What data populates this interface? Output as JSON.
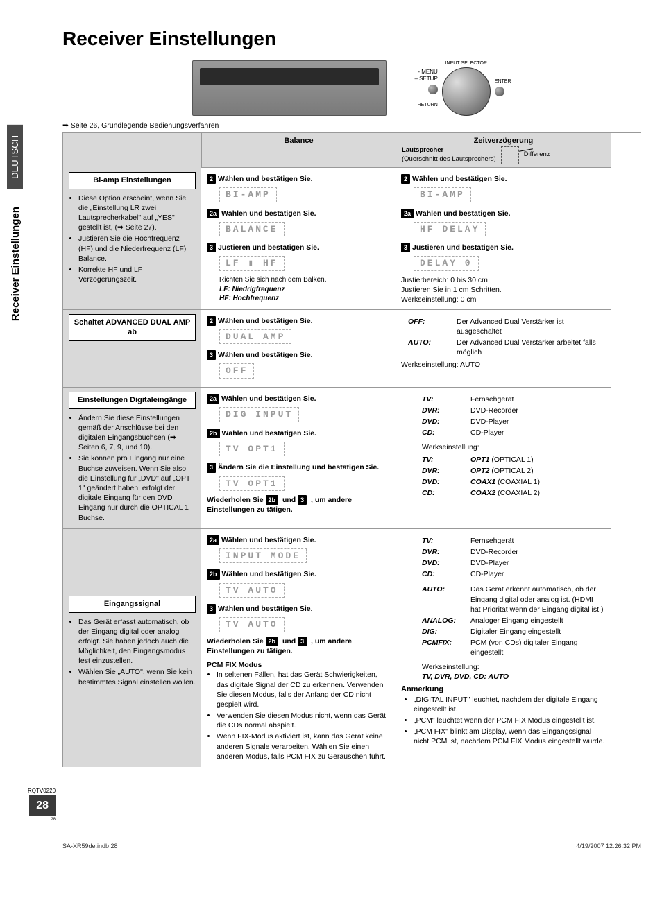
{
  "page": {
    "title": "Receiver Einstellungen",
    "ref": "➡ Seite 26, Grundlegende Bedienungsverfahren",
    "side_tab_lang": "DEUTSCH",
    "side_tab_section": "Receiver Einstellungen",
    "page_number": "28",
    "footer_code": "RQTV0220",
    "bottom_left": "SA-XR59de.indb   28",
    "bottom_right": "4/19/2007   12:26:32 PM",
    "small_page": "28"
  },
  "knob": {
    "input_selector": "INPUT SELECTOR",
    "menu": "- MENU",
    "setup": "– SETUP",
    "return": "RETURN",
    "enter": "ENTER"
  },
  "headers": {
    "balance": "Balance",
    "delay": "Zeitverzögerung"
  },
  "delay_header": {
    "speaker": "Lautsprecher",
    "cross": "(Querschnitt des Lautsprechers)",
    "diff": "Differenz"
  },
  "row1": {
    "left_title": "Bi-amp Einstellungen",
    "left_b1": "Diese Option erscheint, wenn Sie die „Einstellung LR zwei Lautsprecherkabel\" auf „YES\" gestellt ist, (➡ Seite 27).",
    "left_b2": "Justieren Sie die Hochfrequenz (HF) und die Niederfrequenz (LF) Balance.",
    "left_b3": "Korrekte HF und LF Verzögerungszeit.",
    "mid_s2": "Wählen und bestätigen Sie.",
    "mid_lcd1": "BI-AMP",
    "mid_s2a": "Wählen und bestätigen Sie.",
    "mid_lcd2": "BALANCE",
    "mid_s3": "Justieren und bestätigen Sie.",
    "mid_lcd3": "LF  ▮  HF",
    "mid_note": "Richten Sie sich nach dem Balken.",
    "mid_lf": "LF: Niedrigfrequenz",
    "mid_hf": "HF: Hochfrequenz",
    "right_s2": "Wählen und bestätigen Sie.",
    "right_lcd1": "BI-AMP",
    "right_s2a": "Wählen und bestätigen Sie.",
    "right_lcd2": "HF DELAY",
    "right_s3": "Justieren und bestätigen Sie.",
    "right_lcd3": "DELAY  0",
    "right_n1": "Justierbereich: 0 bis 30 cm",
    "right_n2": "Justieren Sie in 1 cm Schritten.",
    "right_n3": "Werkseinstellung: 0 cm"
  },
  "row2": {
    "left_title": "Schaltet ADVANCED DUAL AMP ab",
    "mid_s2": "Wählen und bestätigen Sie.",
    "mid_lcd1": "DUAL AMP",
    "mid_s3": "Wählen und bestätigen Sie.",
    "mid_lcd2": "OFF",
    "right_off_k": "OFF:",
    "right_off_v": "Der Advanced Dual Verstärker ist ausgeschaltet",
    "right_auto_k": "AUTO:",
    "right_auto_v": "Der Advanced Dual Verstärker arbeitet falls möglich",
    "right_default": "Werkseinstellung: AUTO"
  },
  "row3": {
    "left_title": "Einstellungen Digitaleingänge",
    "left_b1": "Ändern Sie diese Einstellungen gemäß der Anschlüsse bei den digitalen Eingangsbuchsen (➡ Seiten 6, 7, 9, und 10).",
    "left_b2": "Sie können pro Eingang nur eine Buchse zuweisen. Wenn Sie also die Einstellung für „DVD\" auf „OPT 1\" geändert haben, erfolgt der digitale Eingang für den DVD Eingang nur durch die OPTICAL 1 Buchse.",
    "mid_s2a": "Wählen und bestätigen Sie.",
    "mid_lcd1": "DIG INPUT",
    "mid_s2b": "Wählen und bestätigen Sie.",
    "mid_lcd2": "TV   OPT1",
    "mid_s3": "Ändern Sie die Einstellung und bestätigen Sie.",
    "mid_lcd3": "TV   OPT1",
    "mid_repeat": "Wiederholen Sie 2b und 3 , um andere Einstellungen zu tätigen.",
    "kv": [
      {
        "k": "TV:",
        "v": "Fernsehgerät"
      },
      {
        "k": "DVR:",
        "v": "DVD-Recorder"
      },
      {
        "k": "DVD:",
        "v": "DVD-Player"
      },
      {
        "k": "CD:",
        "v": "CD-Player"
      }
    ],
    "default_label": "Werkseinstellung:",
    "defaults": [
      {
        "k": "TV:",
        "v": "OPT1 (OPTICAL 1)"
      },
      {
        "k": "DVR:",
        "v": "OPT2 (OPTICAL 2)"
      },
      {
        "k": "DVD:",
        "v": "COAX1 (COAXIAL 1)"
      },
      {
        "k": "CD:",
        "v": "COAX2 (COAXIAL 2)"
      }
    ]
  },
  "row4": {
    "left_title": "Eingangssignal",
    "left_b1": "Das Gerät erfasst automatisch, ob der Eingang digital oder analog erfolgt. Sie haben jedoch auch die Möglichkeit, den Eingangsmodus fest einzustellen.",
    "left_b2": "Wählen Sie „AUTO\", wenn Sie kein bestimmtes Signal einstellen wollen.",
    "mid_s2a": "Wählen und bestätigen Sie.",
    "mid_lcd1": "INPUT MODE",
    "mid_s2b": "Wählen und bestätigen Sie.",
    "mid_lcd2": "TV   AUTO",
    "mid_s3": "Wählen und bestätigen Sie.",
    "mid_lcd3": "TV   AUTO",
    "mid_repeat": "Wiederholen Sie 2b und 3 , um andere Einstellungen zu tätigen.",
    "pcm_title": "PCM FIX Modus",
    "pcm_b1": "In seltenen Fällen, hat das Gerät Schwierigkeiten, das digitale Signal der CD zu erkennen. Verwenden Sie diesen Modus, falls der Anfang der CD nicht gespielt wird.",
    "pcm_b2": "Verwenden Sie diesen Modus nicht, wenn das Gerät die CDs normal abspielt.",
    "pcm_b3": "Wenn FIX-Modus aktiviert ist, kann das Gerät keine anderen Signale verarbeiten. Wählen Sie einen anderen Modus, falls PCM FIX zu Geräuschen führt.",
    "kv": [
      {
        "k": "TV:",
        "v": "Fernsehgerät"
      },
      {
        "k": "DVR:",
        "v": "DVD-Recorder"
      },
      {
        "k": "DVD:",
        "v": "DVD-Player"
      },
      {
        "k": "CD:",
        "v": "CD-Player"
      }
    ],
    "modes": [
      {
        "k": "AUTO:",
        "v": "Das Gerät erkennt automatisch, ob der Eingang digital oder analog ist. (HDMI hat Priorität wenn der Eingang digital ist.)"
      },
      {
        "k": "ANALOG:",
        "v": "Analoger Eingang eingestellt"
      },
      {
        "k": "DIG:",
        "v": "Digitaler Eingang eingestellt"
      },
      {
        "k": "PCMFIX:",
        "v": "PCM (von CDs) digitaler Eingang eingestellt"
      }
    ],
    "default_label": "Werkseinstellung:",
    "default_value": "TV, DVR, DVD, CD: AUTO",
    "anmerkung": "Anmerkung",
    "anm_b1": "„DIGITAL INPUT\" leuchtet, nachdem der digitale Eingang eingestellt ist.",
    "anm_b2": "„PCM\" leuchtet wenn der PCM FIX Modus eingestellt ist.",
    "anm_b3": "„PCM FIX\" blinkt am Display, wenn das Eingangssignal nicht PCM ist, nachdem PCM FIX Modus eingestellt wurde."
  }
}
